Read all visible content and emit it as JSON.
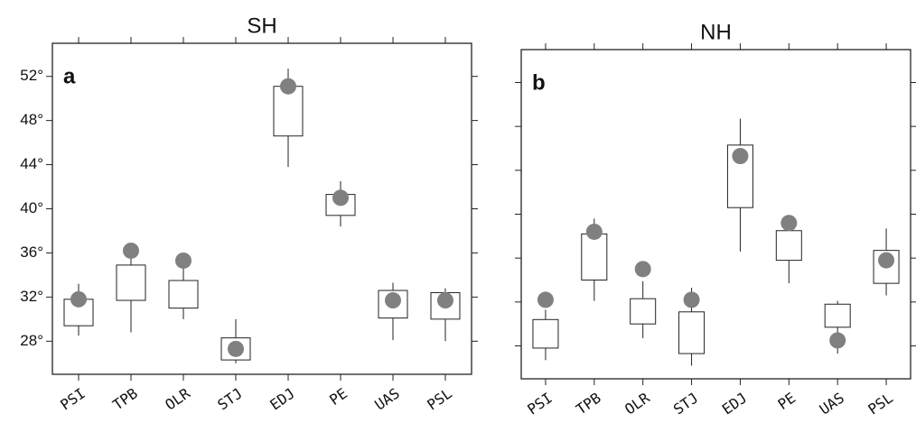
{
  "chart_data": [
    {
      "type": "box",
      "title": "SH",
      "panel_label": "a",
      "categories": [
        "PSI",
        "TPB",
        "OLR",
        "STJ",
        "EDJ",
        "PE",
        "UAS",
        "PSL"
      ],
      "whisker_low": [
        28.5,
        28.8,
        30.0,
        26.0,
        43.8,
        38.4,
        28.1,
        28.0
      ],
      "box_low": [
        29.4,
        31.7,
        31.0,
        26.3,
        46.6,
        39.4,
        30.1,
        30.0
      ],
      "box_high": [
        31.8,
        34.9,
        33.5,
        28.3,
        51.1,
        41.3,
        32.6,
        32.4
      ],
      "whisker_high": [
        33.2,
        35.9,
        35.1,
        30.0,
        52.7,
        42.5,
        33.3,
        32.8
      ],
      "marker_values": [
        31.8,
        36.2,
        35.3,
        27.3,
        51.1,
        41.0,
        31.7,
        31.7
      ],
      "marker_color": "#808080",
      "ylim": [
        25,
        55
      ],
      "yticks": [
        {
          "value": 28,
          "label": "28°"
        },
        {
          "value": 32,
          "label": "32°"
        },
        {
          "value": 36,
          "label": "36°"
        },
        {
          "value": 40,
          "label": "40°"
        },
        {
          "value": 44,
          "label": "44°"
        },
        {
          "value": 48,
          "label": "48°"
        },
        {
          "value": 52,
          "label": "52°"
        }
      ],
      "show_ytick_labels": true
    },
    {
      "type": "box",
      "title": "NH",
      "panel_label": "b",
      "categories": [
        "PSI",
        "TPB",
        "OLR",
        "STJ",
        "EDJ",
        "PE",
        "UAS",
        "PSL"
      ],
      "whisker_low": [
        26.7,
        32.1,
        28.7,
        26.2,
        36.6,
        33.7,
        27.3,
        32.6
      ],
      "box_low": [
        27.8,
        34.0,
        30.0,
        27.3,
        40.6,
        35.8,
        29.7,
        33.7
      ],
      "box_high": [
        30.4,
        38.2,
        32.3,
        31.1,
        46.3,
        38.5,
        31.8,
        36.7
      ],
      "whisker_high": [
        31.3,
        39.6,
        33.9,
        33.3,
        48.7,
        39.7,
        32.1,
        38.7
      ],
      "marker_values": [
        32.2,
        38.4,
        35.0,
        32.2,
        45.3,
        39.2,
        28.5,
        35.8
      ],
      "marker_color": "#808080",
      "ylim": [
        25,
        55
      ],
      "yticks": [
        28,
        32,
        36,
        40,
        44,
        48,
        52
      ],
      "show_ytick_labels": false
    }
  ]
}
